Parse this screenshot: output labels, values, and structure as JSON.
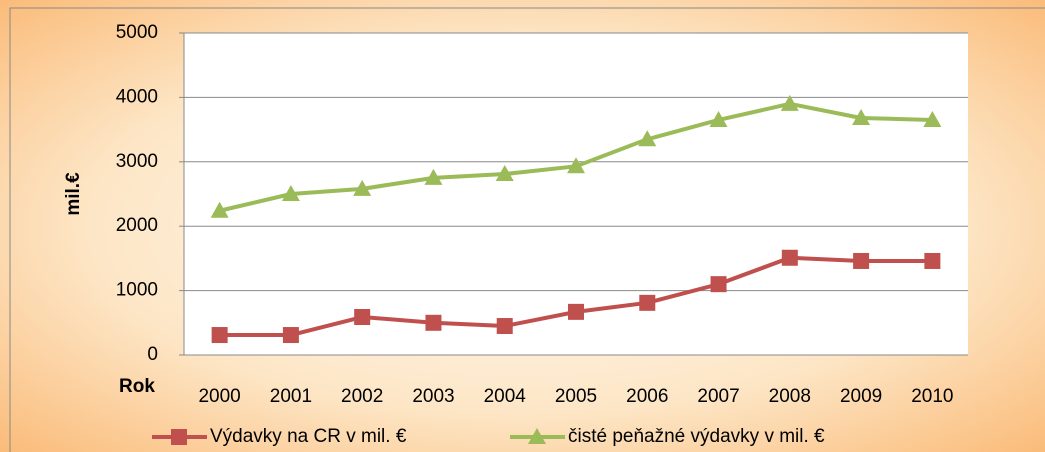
{
  "chart_data": {
    "type": "line",
    "categories": [
      "2000",
      "2001",
      "2002",
      "2003",
      "2004",
      "2005",
      "2006",
      "2007",
      "2008",
      "2009",
      "2010"
    ],
    "series": [
      {
        "name": "Výdavky na CR v mil. €",
        "color": "#c0504d",
        "marker": "square",
        "values": [
          310,
          310,
          590,
          500,
          450,
          670,
          810,
          1100,
          1510,
          1460,
          1460
        ]
      },
      {
        "name": "čisté peňažné výdavky v mil. €",
        "color": "#9bbb59",
        "marker": "triangle",
        "values": [
          2240,
          2500,
          2580,
          2750,
          2810,
          2930,
          3350,
          3650,
          3900,
          3680,
          3650
        ]
      }
    ],
    "y_label": "mil.€",
    "x_label": "Rok",
    "ylim": [
      0,
      5000
    ],
    "yticks": [
      0,
      1000,
      2000,
      3000,
      4000,
      5000
    ],
    "grid": true,
    "legend": "bottom"
  }
}
